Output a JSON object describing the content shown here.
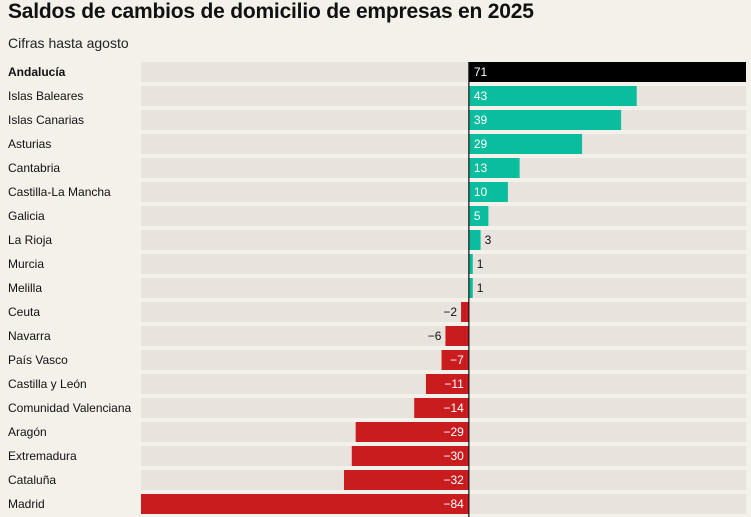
{
  "chart_data": {
    "type": "bar",
    "orientation": "horizontal",
    "title": "Saldos de cambios de domicilio de empresas en 2025",
    "subtitle": "Cifras hasta agosto",
    "xlim": [
      -84,
      71
    ],
    "categories": [
      "Andalucía",
      "Islas Baleares",
      "Islas Canarias",
      "Asturias",
      "Cantabria",
      "Castilla-La Mancha",
      "Galicia",
      "La Rioja",
      "Murcia",
      "Melilla",
      "Ceuta",
      "Navarra",
      "País Vasco",
      "Castilla y León",
      "Comunidad Valenciana",
      "Aragón",
      "Extremadura",
      "Cataluña",
      "Madrid"
    ],
    "values": [
      71,
      43,
      39,
      29,
      13,
      10,
      5,
      3,
      1,
      1,
      -2,
      -6,
      -7,
      -11,
      -14,
      -29,
      -30,
      -32,
      -84
    ],
    "value_labels": [
      "71",
      "43",
      "39",
      "29",
      "13",
      "10",
      "5",
      "3",
      "1",
      "1",
      "−2",
      "−6",
      "−7",
      "−11",
      "−14",
      "−29",
      "−30",
      "−32",
      "−84"
    ],
    "highlight": "Andalucía",
    "colors": {
      "highlight": "#000000",
      "positive": "#0bbd9f",
      "negative": "#c91c1f",
      "track": "#e8e3dd",
      "background": "#f4f0ea"
    }
  }
}
